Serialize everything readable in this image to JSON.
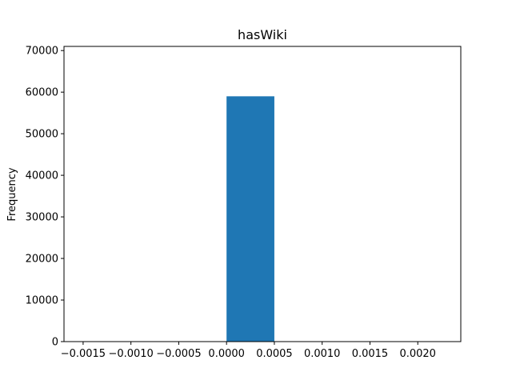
{
  "chart_data": {
    "type": "bar",
    "title": "hasWiki",
    "xlabel": "",
    "ylabel": "Frequency",
    "bins": [
      {
        "x0": 0.0,
        "x1": 0.0005,
        "value": 59000
      }
    ],
    "xlim": [
      -0.0017,
      0.00245
    ],
    "ylim": [
      0,
      71000
    ],
    "x_ticks": [
      -0.0015,
      -0.001,
      -0.0005,
      0.0,
      0.0005,
      0.001,
      0.0015,
      0.002
    ],
    "x_tick_labels": [
      "−0.0015",
      "−0.0010",
      "−0.0005",
      "0.0000",
      "0.0005",
      "0.0010",
      "0.0015",
      "0.0020"
    ],
    "y_ticks": [
      0,
      10000,
      20000,
      30000,
      40000,
      50000,
      60000,
      70000
    ],
    "y_tick_labels": [
      "0",
      "10000",
      "20000",
      "30000",
      "40000",
      "50000",
      "60000",
      "70000"
    ],
    "bar_color": "#1f77b4",
    "grid": false,
    "legend": "none"
  }
}
